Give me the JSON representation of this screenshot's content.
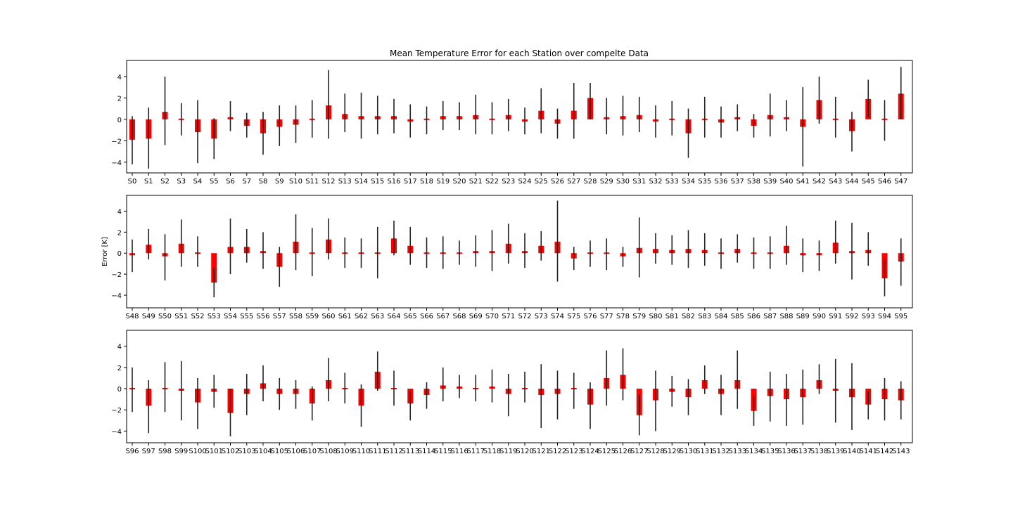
{
  "title": "Mean Temperature Error for each Station over compelte Data",
  "chart_data": [
    {
      "type": "bar",
      "ylabel": "",
      "ylim": [
        -5.0,
        5.5
      ],
      "yticks": [
        -4,
        -2,
        0,
        2,
        4
      ],
      "categories": [
        "S0",
        "S1",
        "S2",
        "S3",
        "S4",
        "S5",
        "S6",
        "S7",
        "S8",
        "S9",
        "S10",
        "S11",
        "S12",
        "S13",
        "S14",
        "S15",
        "S16",
        "S17",
        "S18",
        "S19",
        "S20",
        "S21",
        "S22",
        "S23",
        "S24",
        "S25",
        "S26",
        "S27",
        "S28",
        "S29",
        "S30",
        "S31",
        "S32",
        "S33",
        "S34",
        "S35",
        "S36",
        "S37",
        "S38",
        "S39",
        "S40",
        "S41",
        "S42",
        "S43",
        "S44",
        "S45",
        "S46",
        "S47"
      ],
      "values": [
        -1.9,
        -1.8,
        0.7,
        0.0,
        -1.2,
        -1.8,
        0.2,
        -0.6,
        -1.3,
        -0.7,
        -0.5,
        0.0,
        1.3,
        0.5,
        0.3,
        0.3,
        0.3,
        -0.2,
        0.0,
        0.3,
        0.3,
        0.4,
        0.1,
        0.4,
        -0.2,
        0.8,
        -0.4,
        0.8,
        2.0,
        0.2,
        0.3,
        0.4,
        -0.2,
        0.05,
        -1.3,
        0.1,
        -0.3,
        0.2,
        -0.6,
        0.4,
        0.2,
        -0.7,
        1.8,
        0.1,
        -1.1,
        1.9,
        0.0,
        2.4
      ],
      "error_low": [
        -4.2,
        -4.6,
        -2.4,
        -1.5,
        -4.1,
        -3.7,
        -1.1,
        -1.7,
        -3.3,
        -2.5,
        -2.2,
        -1.7,
        -1.8,
        -1.2,
        -1.8,
        -1.4,
        -1.3,
        -1.7,
        -1.4,
        -1.0,
        -1.0,
        -1.4,
        -1.4,
        -1.1,
        -1.4,
        -1.3,
        -1.8,
        -1.8,
        0.0,
        -1.4,
        -1.5,
        -1.2,
        -1.7,
        -1.5,
        -3.6,
        -1.7,
        -1.7,
        -1.1,
        -1.7,
        -1.6,
        -1.1,
        -4.4,
        -0.4,
        -1.7,
        -3.0,
        0.2,
        -2.0,
        0.0
      ],
      "error_high": [
        0.3,
        1.1,
        4.0,
        1.5,
        1.8,
        0.1,
        1.7,
        0.6,
        0.7,
        1.3,
        1.3,
        1.8,
        4.6,
        2.4,
        2.5,
        2.2,
        1.9,
        1.4,
        1.2,
        1.7,
        1.6,
        2.3,
        1.6,
        1.9,
        1.1,
        2.9,
        1.0,
        3.4,
        3.4,
        2.0,
        2.2,
        2.1,
        1.3,
        1.7,
        1.0,
        2.1,
        1.2,
        1.4,
        0.5,
        2.4,
        1.8,
        3.0,
        4.0,
        2.1,
        0.7,
        3.7,
        1.8,
        4.9
      ]
    },
    {
      "type": "bar",
      "ylabel": "Error [K]",
      "ylim": [
        -5.2,
        5.5
      ],
      "yticks": [
        -4,
        -2,
        0,
        2,
        4
      ],
      "categories": [
        "S48",
        "S49",
        "S50",
        "S51",
        "S52",
        "S53",
        "S54",
        "S55",
        "S56",
        "S57",
        "S58",
        "S59",
        "S60",
        "S61",
        "S62",
        "S63",
        "S64",
        "S65",
        "S66",
        "S67",
        "S68",
        "S69",
        "S70",
        "S71",
        "S72",
        "S73",
        "S74",
        "S75",
        "S76",
        "S77",
        "S78",
        "S79",
        "S80",
        "S81",
        "S82",
        "S83",
        "S84",
        "S85",
        "S86",
        "S87",
        "S88",
        "S89",
        "S90",
        "S91",
        "S92",
        "S93",
        "S94",
        "S95"
      ],
      "values": [
        -0.2,
        0.8,
        -0.3,
        0.9,
        0.05,
        -2.8,
        0.6,
        0.6,
        0.2,
        -1.3,
        1.1,
        0.1,
        1.3,
        0.0,
        -0.05,
        -0.05,
        1.4,
        0.7,
        0.05,
        -0.05,
        -0.05,
        0.2,
        0.2,
        0.9,
        0.2,
        0.7,
        1.1,
        -0.5,
        -0.05,
        -0.05,
        -0.3,
        0.5,
        0.4,
        0.3,
        0.4,
        0.3,
        -0.05,
        0.4,
        0.0,
        0.0,
        0.7,
        -0.2,
        -0.2,
        1.0,
        0.2,
        0.3,
        -2.4,
        -0.8
      ],
      "error_low": [
        -1.8,
        -0.6,
        -2.6,
        -1.3,
        -1.3,
        -4.2,
        -2.0,
        -0.9,
        -1.5,
        -3.2,
        -1.6,
        -2.2,
        -0.6,
        -1.4,
        -1.4,
        -2.4,
        -0.2,
        -1.1,
        -1.4,
        -1.5,
        -1.1,
        -1.3,
        -1.7,
        -1.0,
        -1.4,
        -0.7,
        -2.7,
        -1.6,
        -1.3,
        -1.6,
        -1.3,
        -2.3,
        -1.0,
        -1.1,
        -1.4,
        -1.2,
        -1.5,
        -0.9,
        -1.5,
        -1.5,
        -1.1,
        -1.8,
        -1.7,
        -1.0,
        -2.5,
        -1.2,
        -4.1,
        -3.1
      ],
      "error_high": [
        1.3,
        2.3,
        1.8,
        3.2,
        1.6,
        -1.4,
        3.3,
        2.3,
        2.0,
        0.6,
        3.7,
        2.4,
        3.3,
        1.5,
        1.4,
        2.5,
        3.1,
        2.5,
        1.5,
        1.6,
        1.2,
        1.7,
        2.2,
        2.8,
        1.9,
        2.1,
        5.0,
        0.6,
        1.2,
        1.4,
        0.6,
        3.4,
        1.9,
        1.7,
        2.2,
        1.9,
        1.4,
        1.8,
        1.5,
        1.6,
        2.6,
        1.4,
        1.2,
        3.1,
        2.9,
        2.0,
        -0.6,
        1.4
      ]
    },
    {
      "type": "bar",
      "ylabel": "",
      "ylim": [
        -5.1,
        5.5
      ],
      "yticks": [
        -4,
        -2,
        0,
        2,
        4
      ],
      "categories": [
        "S96",
        "S97",
        "S98",
        "S99",
        "S100",
        "S101",
        "S102",
        "S103",
        "S104",
        "S105",
        "S106",
        "S107",
        "S108",
        "S109",
        "S110",
        "S111",
        "S112",
        "S113",
        "S114",
        "S115",
        "S116",
        "S117",
        "S118",
        "S119",
        "S120",
        "S121",
        "S122",
        "S123",
        "S124",
        "S125",
        "S126",
        "S127",
        "S128",
        "S129",
        "S130",
        "S131",
        "S132",
        "S133",
        "S134",
        "S135",
        "S136",
        "S137",
        "S138",
        "S139",
        "S140",
        "S141",
        "S142",
        "S143"
      ],
      "values": [
        -0.1,
        -1.6,
        0.1,
        -0.2,
        -1.3,
        -0.3,
        -2.3,
        -0.5,
        0.5,
        -0.5,
        -0.5,
        -1.4,
        0.8,
        0.05,
        -1.6,
        1.6,
        0.05,
        -1.4,
        -0.6,
        0.3,
        0.2,
        0.05,
        0.2,
        -0.5,
        0.1,
        -0.6,
        -0.5,
        -0.1,
        -1.5,
        1.0,
        1.3,
        -2.5,
        -1.1,
        -0.3,
        -0.8,
        0.8,
        -0.5,
        0.8,
        -2.1,
        -0.7,
        -1.0,
        -0.8,
        0.8,
        -0.2,
        -0.8,
        -1.5,
        -1.0,
        -1.1
      ],
      "error_low": [
        -2.2,
        -4.2,
        -2.2,
        -3.0,
        -3.8,
        -1.8,
        -4.5,
        -2.5,
        -1.2,
        -2.0,
        -1.9,
        -3.0,
        -1.2,
        -1.4,
        -3.6,
        -0.2,
        -1.6,
        -3.0,
        -1.9,
        -1.2,
        -0.9,
        -1.2,
        -1.3,
        -2.6,
        -1.3,
        -3.7,
        -2.9,
        -1.9,
        -3.8,
        -1.6,
        -1.1,
        -4.4,
        -4.0,
        -1.7,
        -2.5,
        -0.5,
        -2.5,
        -1.9,
        -3.5,
        -3.1,
        -3.5,
        -3.4,
        -0.5,
        -3.2,
        -3.9,
        -2.9,
        -3.0,
        -2.9
      ],
      "error_high": [
        2.0,
        0.8,
        2.5,
        2.6,
        1.0,
        1.3,
        0.0,
        1.4,
        2.2,
        1.0,
        0.8,
        0.2,
        2.9,
        1.5,
        0.4,
        3.5,
        1.7,
        -0.2,
        0.6,
        2.0,
        1.3,
        1.3,
        1.8,
        1.4,
        1.6,
        2.3,
        1.7,
        1.5,
        0.6,
        3.6,
        3.8,
        -0.6,
        1.7,
        1.2,
        0.9,
        2.2,
        1.3,
        3.6,
        -0.7,
        1.6,
        1.4,
        1.8,
        2.3,
        2.8,
        2.4,
        -0.2,
        1.0,
        0.7
      ]
    }
  ]
}
